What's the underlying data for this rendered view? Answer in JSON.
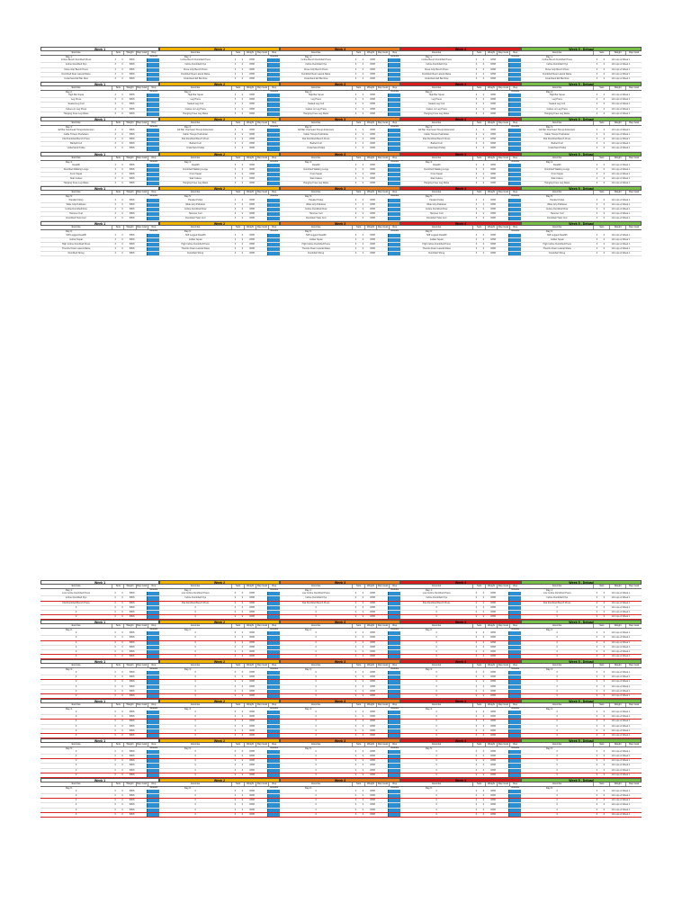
{
  "week_colors": {
    "week1": "#ffffff",
    "week2": "#f2b200",
    "week3": "#e77a1f",
    "week4": "#d91c1c",
    "week5": "#78bf47"
  },
  "headers": {
    "exercise": "Exercise",
    "sets": "Sets",
    "weight": "Weight",
    "rep_goal": "Rep Goal",
    "rep_results": "Rep Results",
    "deload_rep_goal": "Rep Goal"
  },
  "weeks": [
    "Week 1",
    "Week 2",
    "Week 3",
    "Week 4",
    "Week 5 - Deload"
  ],
  "top": {
    "days": [
      {
        "day": "Day 1:",
        "exercises": [
          "Incline Bench Dumbbell Press",
          "Incline Dumbbell Flys",
          "Close Grip Bench Press",
          "Dumbbell Rear Lateral Raise",
          "Underhand EZ Bar Row"
        ]
      },
      {
        "day": "Day 2:",
        "exercises": [
          "High Bar Squat",
          "Leg Press",
          "Seated Leg Curl",
          "Calves on Leg Press",
          "Hanging Knee Leg Raise"
        ]
      },
      {
        "day": "Day 3:",
        "exercises": [
          "EZ Bar Overhead Triceps Extension",
          "Cable Triceps Pushdown",
          "Flat Dumbbell Bench Press",
          "Barbell Curl",
          "Underhand Pullup"
        ]
      },
      {
        "day": "Day 4:",
        "exercises": [
          "Deadlift",
          "Dumbbell Walking Lunge",
          "Front Squat",
          "Stair Calves",
          "Hanging Knee Leg Raise"
        ]
      },
      {
        "day": "Day 5:",
        "exercises": [
          "Parallel Pullup",
          "Wide Grip Pulldown",
          "Incline Dumbbell Row",
          "Hammer Curl",
          "Dumbbell Twist Curl"
        ]
      },
      {
        "day": "Day 6:",
        "exercises": [
          "Stiff Legged Deadlift",
          "Goblet Squat",
          "High Incline Dumbbell Press",
          "Thumbs Down Lateral Raise",
          "Dumbbell Shrug"
        ]
      }
    ],
    "row_values": {
      "sets": "3",
      "weight": "0",
      "rep_goal": "8/8/8",
      "deload_rep_goal": "1/2 reps of Week 1"
    }
  },
  "bottom": {
    "days": [
      {
        "day": "Day 1:",
        "exercises": [
          "Low Incline Dumbbell Press",
          "Incline Dumbbell Flys",
          "Flat Dumbbell Bench Press",
          "0",
          "0",
          "0"
        ]
      },
      {
        "day": "Day 2:",
        "exercises": [
          "0",
          "0",
          "0",
          "0",
          "0",
          "0"
        ]
      },
      {
        "day": "Day 3:",
        "exercises": [
          "0",
          "0",
          "0",
          "0",
          "0",
          "0"
        ]
      },
      {
        "day": "Day 4:",
        "exercises": [
          "0",
          "0",
          "0",
          "0",
          "0",
          "0"
        ]
      },
      {
        "day": "Day 5:",
        "exercises": [
          "0",
          "0",
          "0",
          "0",
          "0",
          "0"
        ]
      },
      {
        "day": "Day 6:",
        "exercises": [
          "0",
          "0",
          "0",
          "0",
          "0",
          "0"
        ]
      }
    ],
    "row_values": {
      "sets": "0",
      "weight": "0",
      "rep_goal": "8/8/8",
      "deload_rep_goal": "1/2 reps of Week 1"
    }
  }
}
